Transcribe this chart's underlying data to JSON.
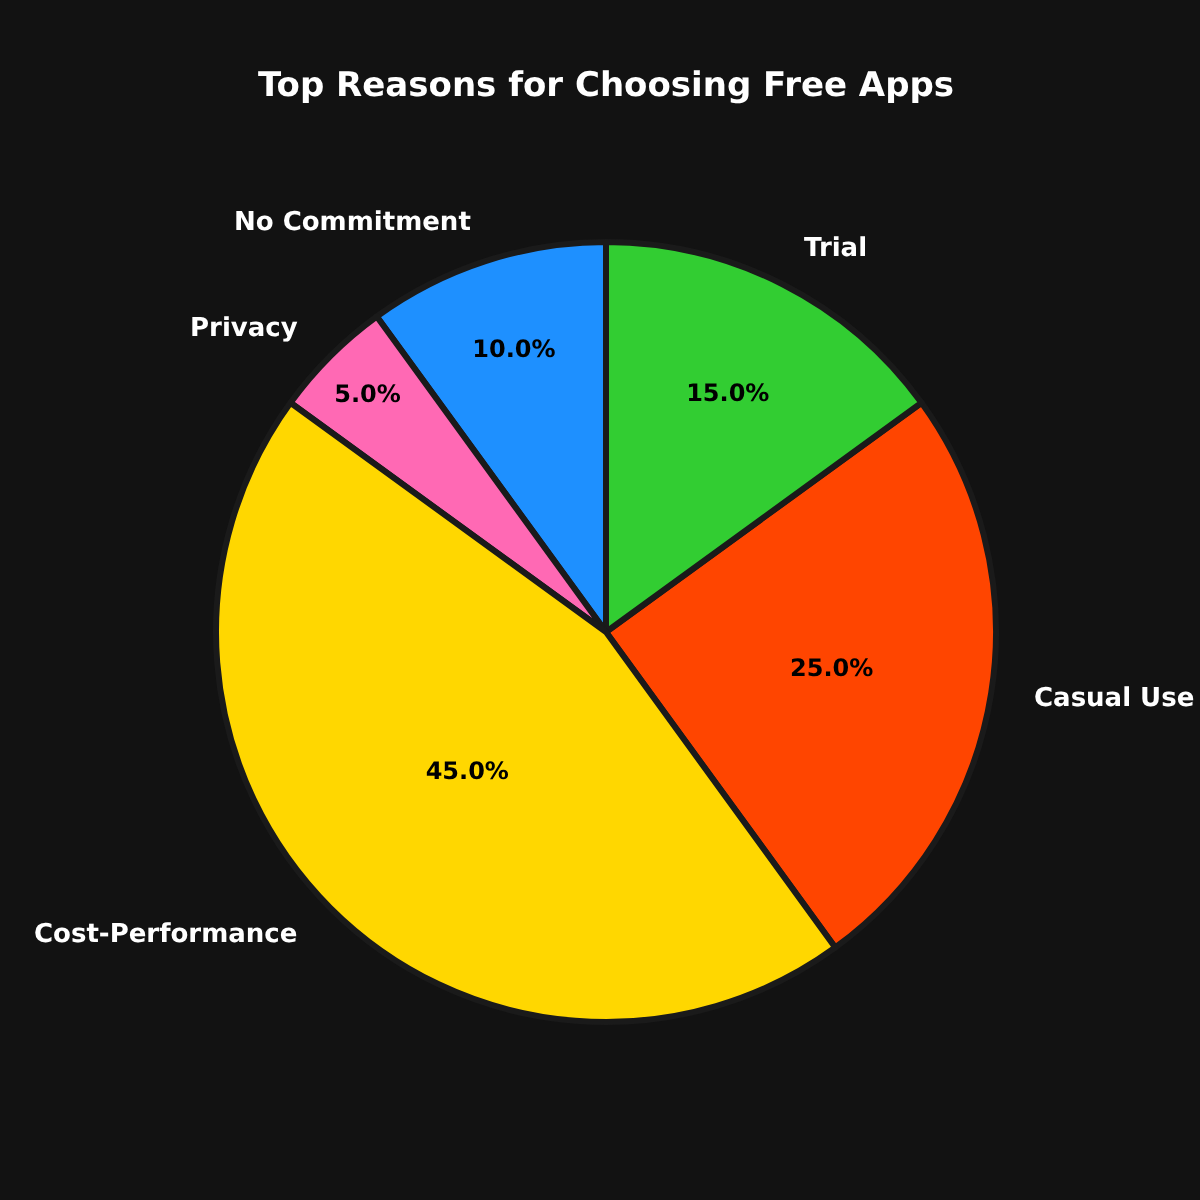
{
  "chart_data": {
    "type": "pie",
    "title": "Top Reasons for Choosing Free Apps",
    "categories": [
      "Casual Use",
      "Trial",
      "No Commitment",
      "Privacy",
      "Cost-Performance"
    ],
    "values": [
      25,
      15,
      10,
      5,
      45
    ],
    "value_labels": [
      "25.0%",
      "15.0%",
      "10.0%",
      "5.0%",
      "45.0%"
    ],
    "colors": [
      "#ff4500",
      "#32cd32",
      "#1e90ff",
      "#ff69b4",
      "#ffd700"
    ],
    "legend": false
  }
}
